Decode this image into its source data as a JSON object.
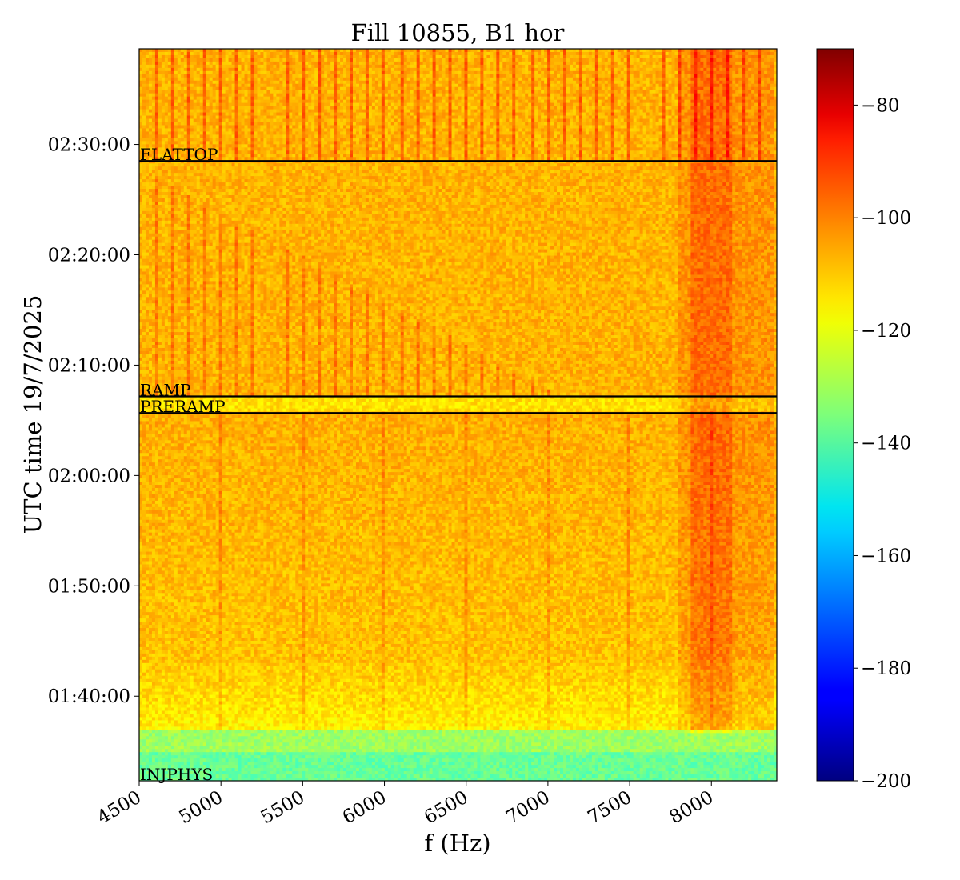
{
  "chart_data": {
    "type": "heatmap",
    "title": "Fill 10855, B1 hor",
    "xlabel": "f (Hz)",
    "ylabel": "UTC time 19/7/2025",
    "xlim": [
      4500,
      8400
    ],
    "x_ticks": [
      4500,
      5000,
      5500,
      6000,
      6500,
      7000,
      7500,
      8000
    ],
    "x_tick_labels": [
      "4500",
      "5000",
      "5500",
      "6000",
      "6500",
      "7000",
      "7500",
      "8000"
    ],
    "ylim": [
      "01:32:20",
      "02:38:40"
    ],
    "y_ticks": [
      "01:40:00",
      "01:50:00",
      "02:00:00",
      "02:10:00",
      "02:20:00",
      "02:30:00"
    ],
    "y_tick_labels": [
      "01:40:00",
      "01:50:00",
      "02:00:00",
      "02:10:00",
      "02:20:00",
      "02:30:00"
    ],
    "colorscale": {
      "name": "jet",
      "range": [
        -200,
        -70
      ],
      "ticks": [
        -80,
        -100,
        -120,
        -140,
        -160,
        -180,
        -200
      ],
      "tick_labels": [
        "−80",
        "−100",
        "−120",
        "−140",
        "−160",
        "−180",
        "−200"
      ]
    },
    "beam_modes": [
      {
        "label": "FLATTOP",
        "time": "02:28:30"
      },
      {
        "label": "RAMP",
        "time": "02:07:10"
      },
      {
        "label": "PRERAMP",
        "time": "02:05:40"
      },
      {
        "label": "INJPHYS",
        "time": "01:32:20"
      }
    ]
  }
}
